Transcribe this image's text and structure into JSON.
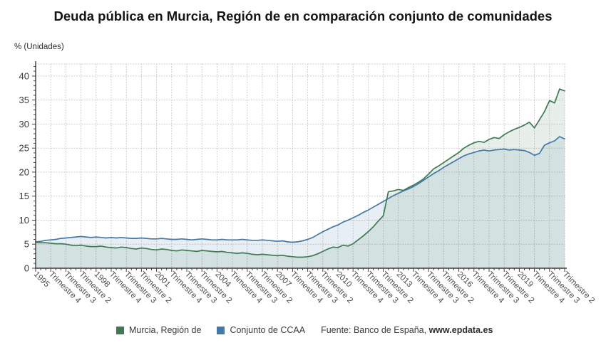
{
  "title": "Deuda pública en Murcia, Región de en comparación conjunto de comunidades",
  "unit_label": "% (Unidades)",
  "legend": [
    {
      "label": "Murcia, Región de",
      "color": "#3f7a55"
    },
    {
      "label": "Conjunto de CCAA",
      "color": "#4478a8"
    }
  ],
  "source": {
    "prefix": "Fuente: Banco de España, ",
    "link": "www.epdata.es"
  },
  "chart_data": {
    "type": "area",
    "title": "Deuda pública en Murcia, Región de en comparación conjunto de comunidades",
    "ylabel": "% (Unidades)",
    "ylim": [
      0,
      42.5
    ],
    "y_ticks": [
      0,
      5,
      10,
      15,
      20,
      25,
      30,
      35,
      40
    ],
    "grid": true,
    "legend_position": "bottom",
    "n_points": 106,
    "x_tick_every": 3,
    "x_tick_labels": [
      "1995",
      "Trimestre 4",
      "Trimestre 3",
      "Trimestre 2",
      "1998",
      "Trimestre 4",
      "Trimestre 3",
      "Trimestre 2",
      "2001",
      "Trimestre 4",
      "Trimestre 3",
      "Trimestre 2",
      "2004",
      "Trimestre 4",
      "Trimestre 3",
      "Trimestre 2",
      "2007",
      "Trimestre 4",
      "Trimestre 3",
      "Trimestre 2",
      "2010",
      "Trimestre 4",
      "Trimestre 3",
      "Trimestre 2",
      "2013",
      "Trimestre 4",
      "Trimestre 3",
      "Trimestre 2",
      "2016",
      "Trimestre 4",
      "Trimestre 3",
      "Trimestre 2",
      "2019",
      "Trimestre 4",
      "Trimestre 3",
      "Trimestre 2"
    ],
    "series": [
      {
        "name": "Murcia, Región de",
        "color": "#3f7a55",
        "values": [
          5.4,
          5.3,
          5.3,
          5.2,
          5.1,
          5.1,
          5.0,
          4.8,
          4.7,
          4.8,
          4.6,
          4.5,
          4.5,
          4.6,
          4.4,
          4.3,
          4.2,
          4.4,
          4.3,
          4.1,
          4.0,
          4.2,
          4.1,
          3.9,
          3.8,
          4.0,
          3.9,
          3.7,
          3.6,
          3.8,
          3.7,
          3.6,
          3.5,
          3.7,
          3.6,
          3.5,
          3.4,
          3.5,
          3.3,
          3.2,
          3.1,
          3.2,
          3.1,
          2.9,
          2.8,
          2.9,
          2.8,
          2.7,
          2.6,
          2.7,
          2.5,
          2.4,
          2.3,
          2.3,
          2.4,
          2.6,
          3.0,
          3.5,
          4.0,
          4.4,
          4.3,
          4.8,
          4.6,
          5.1,
          5.9,
          6.7,
          7.6,
          8.6,
          9.8,
          10.9,
          15.9,
          16.1,
          16.4,
          16.2,
          16.8,
          17.3,
          17.9,
          18.6,
          19.6,
          20.7,
          21.3,
          22.0,
          22.7,
          23.4,
          24.1,
          25.0,
          25.6,
          26.1,
          26.4,
          26.2,
          26.8,
          27.2,
          27.0,
          27.8,
          28.4,
          28.9,
          29.3,
          29.8,
          30.4,
          29.2,
          30.9,
          32.6,
          34.9,
          34.4,
          37.3,
          36.9
        ]
      },
      {
        "name": "Conjunto de CCAA",
        "color": "#4478a8",
        "values": [
          5.5,
          5.6,
          5.8,
          5.9,
          6.0,
          6.2,
          6.3,
          6.4,
          6.5,
          6.6,
          6.5,
          6.4,
          6.5,
          6.4,
          6.3,
          6.4,
          6.3,
          6.4,
          6.3,
          6.2,
          6.2,
          6.3,
          6.2,
          6.1,
          6.1,
          6.2,
          6.1,
          6.0,
          6.0,
          6.1,
          6.0,
          5.9,
          6.0,
          6.1,
          6.0,
          5.9,
          5.9,
          6.0,
          5.9,
          5.9,
          5.9,
          6.0,
          5.9,
          5.8,
          5.8,
          5.9,
          5.8,
          5.7,
          5.6,
          5.7,
          5.5,
          5.4,
          5.5,
          5.7,
          6.0,
          6.4,
          7.0,
          7.6,
          8.1,
          8.6,
          9.0,
          9.6,
          10.0,
          10.5,
          11.0,
          11.6,
          12.1,
          12.7,
          13.3,
          13.9,
          14.5,
          15.1,
          15.6,
          16.1,
          16.5,
          17.0,
          17.6,
          18.3,
          19.0,
          19.7,
          20.3,
          21.0,
          21.6,
          22.2,
          22.8,
          23.4,
          23.8,
          24.1,
          24.4,
          24.6,
          24.4,
          24.6,
          24.7,
          24.8,
          24.6,
          24.7,
          24.6,
          24.5,
          24.1,
          23.5,
          23.9,
          25.6,
          26.1,
          26.5,
          27.4,
          26.9
        ]
      }
    ]
  }
}
